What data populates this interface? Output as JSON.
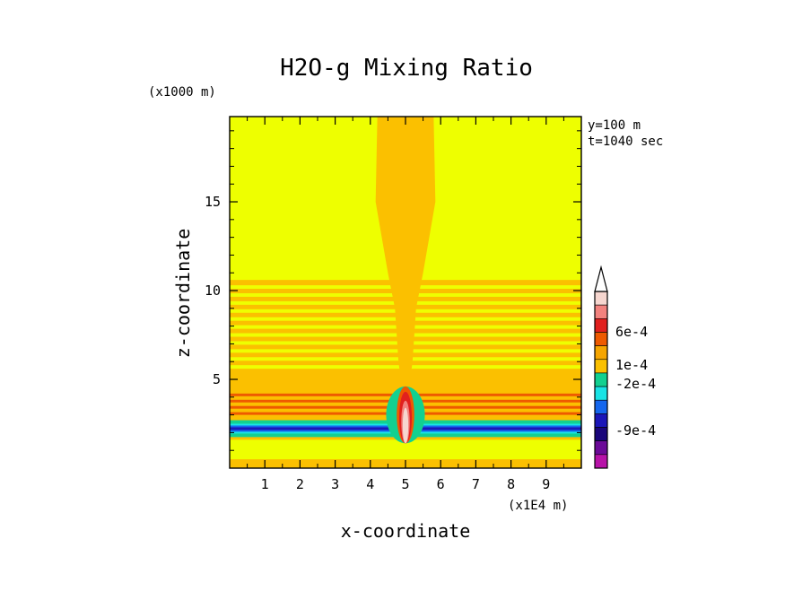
{
  "chart_data": {
    "type": "heatmap",
    "title": "H2O-g Mixing Ratio",
    "xlabel": "x-coordinate",
    "ylabel": "z-coordinate",
    "x_unit": "(x1E4 m)",
    "y_unit": "(x1000 m)",
    "xlim": [
      0,
      10
    ],
    "ylim": [
      0,
      19.8
    ],
    "x_ticks": [
      "1",
      "2",
      "3",
      "4",
      "5",
      "6",
      "7",
      "8",
      "9"
    ],
    "y_ticks": [
      "5",
      "10",
      "15"
    ],
    "info": [
      "y=100 m",
      "t=1040 sec"
    ],
    "colorbar": {
      "labels": [
        "6e-4",
        "1e-4",
        "-2e-4",
        "-9e-4"
      ],
      "colors": [
        "#f6d6cf",
        "#f2827e",
        "#e1201e",
        "#ee5a00",
        "#f5a500",
        "#fbc000",
        "#12d090",
        "#19e3e5",
        "#1567ee",
        "#1b16b8",
        "#1a067b",
        "#6b0a98",
        "#b713a8"
      ],
      "extend": "max"
    },
    "regions": {
      "background": "#eeff00",
      "layer_band": "#fbc000",
      "warm_band": "#ee5a00",
      "negative_band": "#1567ee",
      "core": "#f6d6cf"
    }
  }
}
